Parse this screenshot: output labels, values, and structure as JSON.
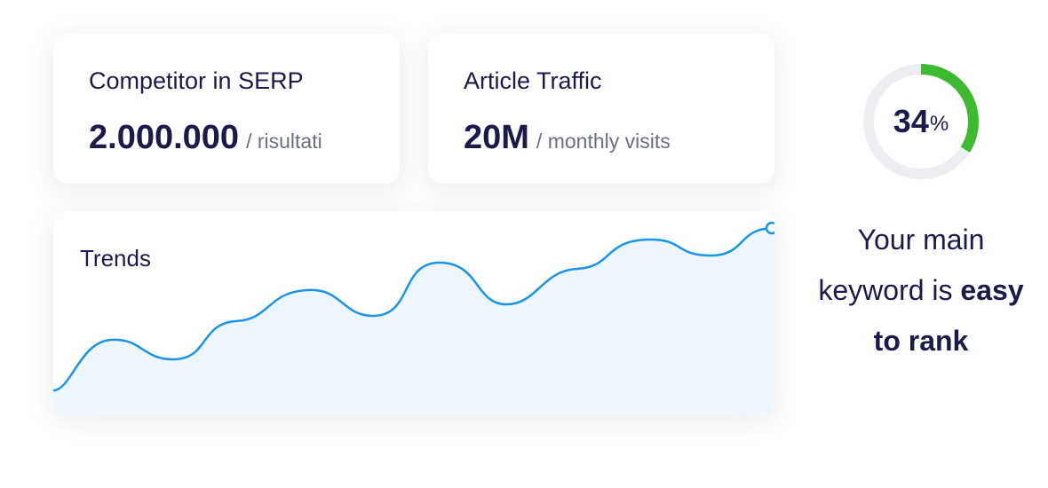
{
  "cards": [
    {
      "title": "Competitor in SERP",
      "value": "2.000.000",
      "unit": "/ risultati"
    },
    {
      "title": "Article Traffic",
      "value": "20M",
      "unit": "/ monthly visits"
    }
  ],
  "trends": {
    "title": "Trends"
  },
  "gauge": {
    "value": 34,
    "unit": "%"
  },
  "message": {
    "text": "Your main keyword is",
    "emphasis": "easy to rank"
  }
}
